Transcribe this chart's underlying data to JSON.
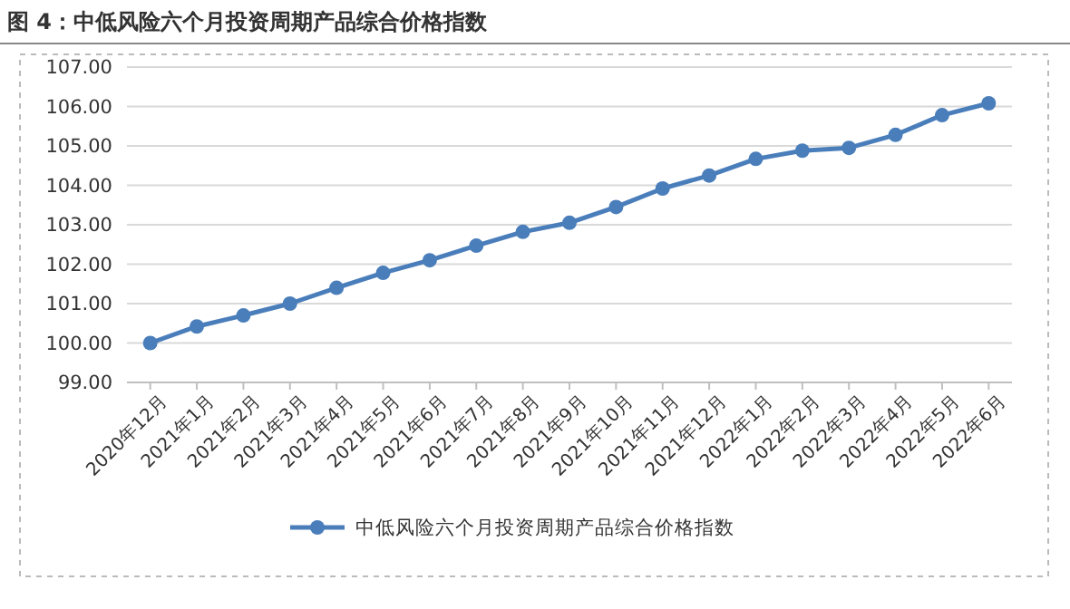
{
  "chart_data": {
    "type": "line",
    "title": "图 4：中低风险六个月投资周期产品综合价格指数",
    "categories": [
      "2020年12月",
      "2021年1月",
      "2021年2月",
      "2021年3月",
      "2021年4月",
      "2021年5月",
      "2021年6月",
      "2021年7月",
      "2021年8月",
      "2021年9月",
      "2021年10月",
      "2021年11月",
      "2021年12月",
      "2022年1月",
      "2022年2月",
      "2022年3月",
      "2022年4月",
      "2022年5月",
      "2022年6月"
    ],
    "series": [
      {
        "name": "中低风险六个月投资周期产品综合价格指数",
        "color": "#4a7ebb",
        "values": [
          100.0,
          100.42,
          100.7,
          101.0,
          101.4,
          101.78,
          102.1,
          102.47,
          102.82,
          103.05,
          103.45,
          103.92,
          104.25,
          104.67,
          104.88,
          104.95,
          105.28,
          105.78,
          106.08
        ]
      }
    ],
    "ylim": [
      99,
      107
    ],
    "yticks": [
      {
        "value": 99,
        "label": "99.00"
      },
      {
        "value": 100,
        "label": "100.00"
      },
      {
        "value": 101,
        "label": "101.00"
      },
      {
        "value": 102,
        "label": "102.00"
      },
      {
        "value": 103,
        "label": "103.00"
      },
      {
        "value": 104,
        "label": "104.00"
      },
      {
        "value": 105,
        "label": "105.00"
      },
      {
        "value": 106,
        "label": "106.00"
      },
      {
        "value": 107,
        "label": "107.00"
      }
    ],
    "grid": "y",
    "legend": "bottom",
    "marker": "circle",
    "line_style": "solid"
  }
}
